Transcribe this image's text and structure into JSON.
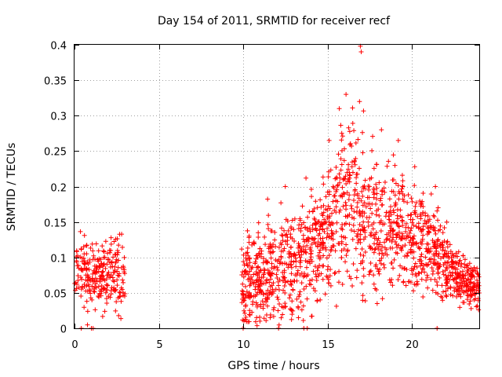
{
  "chart_data": {
    "type": "scatter",
    "title": "Day 154 of 2011, SRMTID for receiver recf",
    "xlabel": "GPS time / hours",
    "ylabel": "SRMTID / TECUs",
    "xlim": [
      0,
      24
    ],
    "ylim": [
      0,
      0.4
    ],
    "xticks": [
      0,
      5,
      10,
      15,
      20
    ],
    "xtick_labels": [
      "0",
      "5",
      "10",
      "15",
      "20"
    ],
    "yticks": [
      0,
      0.05,
      0.1,
      0.15,
      0.2,
      0.25,
      0.3,
      0.35,
      0.4
    ],
    "ytick_labels": [
      "0",
      "0.05",
      "0.1",
      "0.15",
      "0.2",
      "0.25",
      "0.3",
      "0.35",
      "0.4"
    ],
    "grid": true,
    "marker": "+",
    "series": [
      {
        "name": "SRMTID",
        "color": "#ff0000",
        "envelope": [
          {
            "t": 0.0,
            "center": 0.075,
            "spread": 0.035
          },
          {
            "t": 0.5,
            "center": 0.08,
            "spread": 0.04
          },
          {
            "t": 1.0,
            "center": 0.075,
            "spread": 0.035
          },
          {
            "t": 1.5,
            "center": 0.07,
            "spread": 0.035
          },
          {
            "t": 2.0,
            "center": 0.075,
            "spread": 0.04
          },
          {
            "t": 2.5,
            "center": 0.08,
            "spread": 0.04
          },
          {
            "t": 3.0,
            "center": 0.075,
            "spread": 0.04
          },
          {
            "t": 10.0,
            "center": 0.06,
            "spread": 0.05
          },
          {
            "t": 11.0,
            "center": 0.07,
            "spread": 0.06
          },
          {
            "t": 12.0,
            "center": 0.08,
            "spread": 0.06
          },
          {
            "t": 13.0,
            "center": 0.09,
            "spread": 0.06
          },
          {
            "t": 14.0,
            "center": 0.11,
            "spread": 0.06
          },
          {
            "t": 15.0,
            "center": 0.13,
            "spread": 0.07
          },
          {
            "t": 15.5,
            "center": 0.16,
            "spread": 0.08
          },
          {
            "t": 16.0,
            "center": 0.18,
            "spread": 0.09
          },
          {
            "t": 16.5,
            "center": 0.18,
            "spread": 0.09
          },
          {
            "t": 17.0,
            "center": 0.17,
            "spread": 0.09
          },
          {
            "t": 17.5,
            "center": 0.15,
            "spread": 0.08
          },
          {
            "t": 18.0,
            "center": 0.14,
            "spread": 0.07
          },
          {
            "t": 19.0,
            "center": 0.14,
            "spread": 0.07
          },
          {
            "t": 20.0,
            "center": 0.13,
            "spread": 0.06
          },
          {
            "t": 21.0,
            "center": 0.12,
            "spread": 0.05
          },
          {
            "t": 22.0,
            "center": 0.09,
            "spread": 0.04
          },
          {
            "t": 23.0,
            "center": 0.07,
            "spread": 0.03
          },
          {
            "t": 24.0,
            "center": 0.05,
            "spread": 0.025
          }
        ],
        "segments": [
          {
            "start": 0.0,
            "end": 3.0,
            "count": 260
          },
          {
            "start": 9.9,
            "end": 24.0,
            "count": 1500
          }
        ],
        "peaks": [
          {
            "x": 16.95,
            "y": 0.398
          },
          {
            "x": 17.0,
            "y": 0.39
          },
          {
            "x": 16.1,
            "y": 0.33
          },
          {
            "x": 16.9,
            "y": 0.32
          },
          {
            "x": 15.7,
            "y": 0.31
          },
          {
            "x": 18.2,
            "y": 0.28
          },
          {
            "x": 19.2,
            "y": 0.265
          },
          {
            "x": 15.1,
            "y": 0.265
          },
          {
            "x": 21.4,
            "y": 0.2
          },
          {
            "x": 12.5,
            "y": 0.2
          }
        ],
        "zero_points": [
          0.4,
          1.0,
          1.1,
          10.0,
          12.1,
          13.6,
          13.8,
          21.5
        ]
      }
    ]
  }
}
